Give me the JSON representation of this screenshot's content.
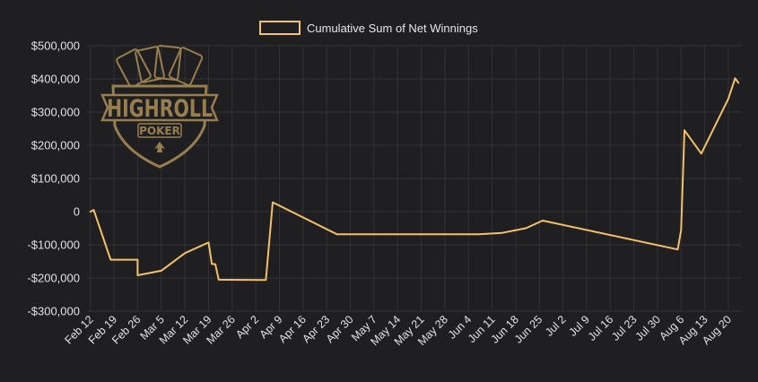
{
  "chart_data": {
    "type": "line",
    "series": [
      {
        "name": "Cumulative Sum of Net Winnings",
        "color": "#f2c265",
        "points": [
          [
            "2023-02-12",
            0
          ],
          [
            "2023-02-13",
            5000
          ],
          [
            "2023-02-18",
            -145000
          ],
          [
            "2023-02-26",
            -145000
          ],
          [
            "2023-02-26",
            -192000
          ],
          [
            "2023-03-05",
            -178000
          ],
          [
            "2023-03-12",
            -125000
          ],
          [
            "2023-03-19",
            -93000
          ],
          [
            "2023-03-20",
            -158000
          ],
          [
            "2023-03-21",
            -158000
          ],
          [
            "2023-03-22",
            -205000
          ],
          [
            "2023-04-05",
            -206000
          ],
          [
            "2023-04-07",
            28000
          ],
          [
            "2023-04-26",
            -68000
          ],
          [
            "2023-06-07",
            -68000
          ],
          [
            "2023-06-14",
            -64000
          ],
          [
            "2023-06-21",
            -50000
          ],
          [
            "2023-06-26",
            -27000
          ],
          [
            "2023-08-05",
            -114000
          ],
          [
            "2023-08-06",
            -55000
          ],
          [
            "2023-08-07",
            245000
          ],
          [
            "2023-08-12",
            175000
          ],
          [
            "2023-08-20",
            340000
          ],
          [
            "2023-08-22",
            402000
          ],
          [
            "2023-08-23",
            388000
          ]
        ]
      }
    ],
    "x_ticks": [
      [
        "2023-02-12",
        "Feb 12"
      ],
      [
        "2023-02-19",
        "Feb 19"
      ],
      [
        "2023-02-26",
        "Feb 26"
      ],
      [
        "2023-03-05",
        "Mar 5"
      ],
      [
        "2023-03-12",
        "Mar 12"
      ],
      [
        "2023-03-19",
        "Mar 19"
      ],
      [
        "2023-03-26",
        "Mar 26"
      ],
      [
        "2023-04-02",
        "Apr 2"
      ],
      [
        "2023-04-09",
        "Apr 9"
      ],
      [
        "2023-04-16",
        "Apr 16"
      ],
      [
        "2023-04-23",
        "Apr 23"
      ],
      [
        "2023-04-30",
        "Apr 30"
      ],
      [
        "2023-05-07",
        "May 7"
      ],
      [
        "2023-05-14",
        "May 14"
      ],
      [
        "2023-05-21",
        "May 21"
      ],
      [
        "2023-05-28",
        "May 28"
      ],
      [
        "2023-06-04",
        "Jun 4"
      ],
      [
        "2023-06-11",
        "Jun 11"
      ],
      [
        "2023-06-18",
        "Jun 18"
      ],
      [
        "2023-06-25",
        "Jun 25"
      ],
      [
        "2023-07-02",
        "Jul 2"
      ],
      [
        "2023-07-09",
        "Jul 9"
      ],
      [
        "2023-07-16",
        "Jul 16"
      ],
      [
        "2023-07-23",
        "Jul 23"
      ],
      [
        "2023-07-30",
        "Jul 30"
      ],
      [
        "2023-08-06",
        "Aug 6"
      ],
      [
        "2023-08-13",
        "Aug 13"
      ],
      [
        "2023-08-20",
        "Aug 20"
      ]
    ],
    "x_range": [
      "2023-02-11",
      "2023-08-24"
    ],
    "y_ticks": [
      [
        500000,
        "$500,000"
      ],
      [
        400000,
        "$400,000"
      ],
      [
        300000,
        "$300,000"
      ],
      [
        200000,
        "$200,000"
      ],
      [
        100000,
        "$100,000"
      ],
      [
        0,
        "0"
      ],
      [
        -100000,
        "-$100,000"
      ],
      [
        -200000,
        "-$200,000"
      ],
      [
        -300000,
        "-$300,000"
      ]
    ],
    "ylim": [
      -300000,
      500000
    ],
    "grid": true,
    "legend": "top-center"
  },
  "logo": {
    "main_text": "HIGHROLL",
    "sub_text": "POKER",
    "color": "#b99a5a"
  },
  "colors": {
    "background": "#1f1e21",
    "grid": "#333236",
    "tick_text": "#e2e2e2"
  }
}
